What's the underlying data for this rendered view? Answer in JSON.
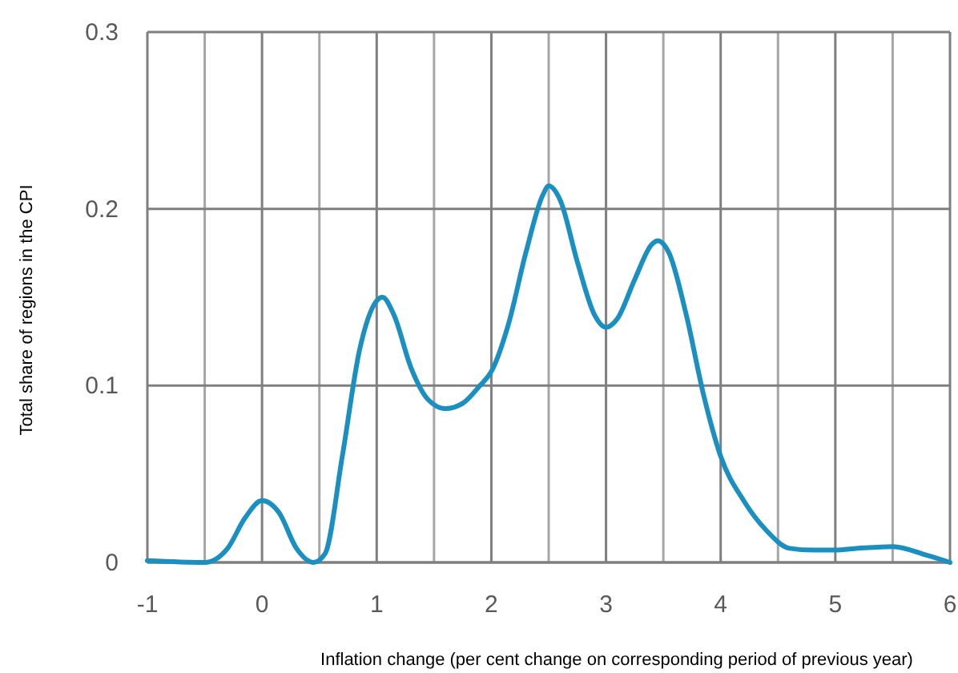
{
  "chart_data": {
    "type": "line",
    "xlabel": "Inflation change (per cent change on corresponding period of previous year)",
    "ylabel": "Total share of regions in the CPI",
    "x": [
      -1,
      -0.5,
      -0.3,
      -0.15,
      0,
      0.15,
      0.3,
      0.45,
      0.55,
      0.7,
      0.85,
      1.0,
      1.05,
      1.15,
      1.3,
      1.45,
      1.6,
      1.75,
      1.9,
      2.0,
      2.15,
      2.3,
      2.45,
      2.5,
      2.6,
      2.75,
      2.9,
      3.0,
      3.1,
      3.25,
      3.4,
      3.45,
      3.55,
      3.7,
      3.85,
      4.0,
      4.2,
      4.4,
      4.6,
      4.8,
      5.0,
      5.2,
      5.5,
      5.8,
      6.0
    ],
    "series": [
      {
        "color": "#1a8fc0",
        "values": [
          0.001,
          0,
          0.008,
          0.025,
          0.035,
          0.028,
          0.008,
          0,
          0.005,
          0.06,
          0.12,
          0.148,
          0.15,
          0.14,
          0.11,
          0.092,
          0.087,
          0.09,
          0.1,
          0.108,
          0.135,
          0.175,
          0.208,
          0.213,
          0.205,
          0.17,
          0.14,
          0.133,
          0.138,
          0.16,
          0.18,
          0.182,
          0.175,
          0.14,
          0.095,
          0.06,
          0.035,
          0.018,
          0.008,
          0.007,
          0.007,
          0.008,
          0.009,
          0.004,
          0
        ]
      }
    ],
    "xlim": [
      -1,
      6
    ],
    "xticks": [
      -1,
      {
        "value": -0.5,
        "label": null
      },
      0,
      {
        "value": 0.5,
        "label": null
      },
      1,
      {
        "value": 1.5,
        "label": null
      },
      2,
      {
        "value": 2.5,
        "label": null
      },
      3,
      {
        "value": 3.5,
        "label": null
      },
      4,
      {
        "value": 4.5,
        "label": null
      },
      5,
      {
        "value": 5.5,
        "label": null
      },
      6
    ],
    "ylim": [
      0,
      0.3
    ],
    "yticks": [
      0,
      0.1,
      0.2,
      0.3
    ],
    "grid": true,
    "marker": "none",
    "line_style": "solid"
  }
}
